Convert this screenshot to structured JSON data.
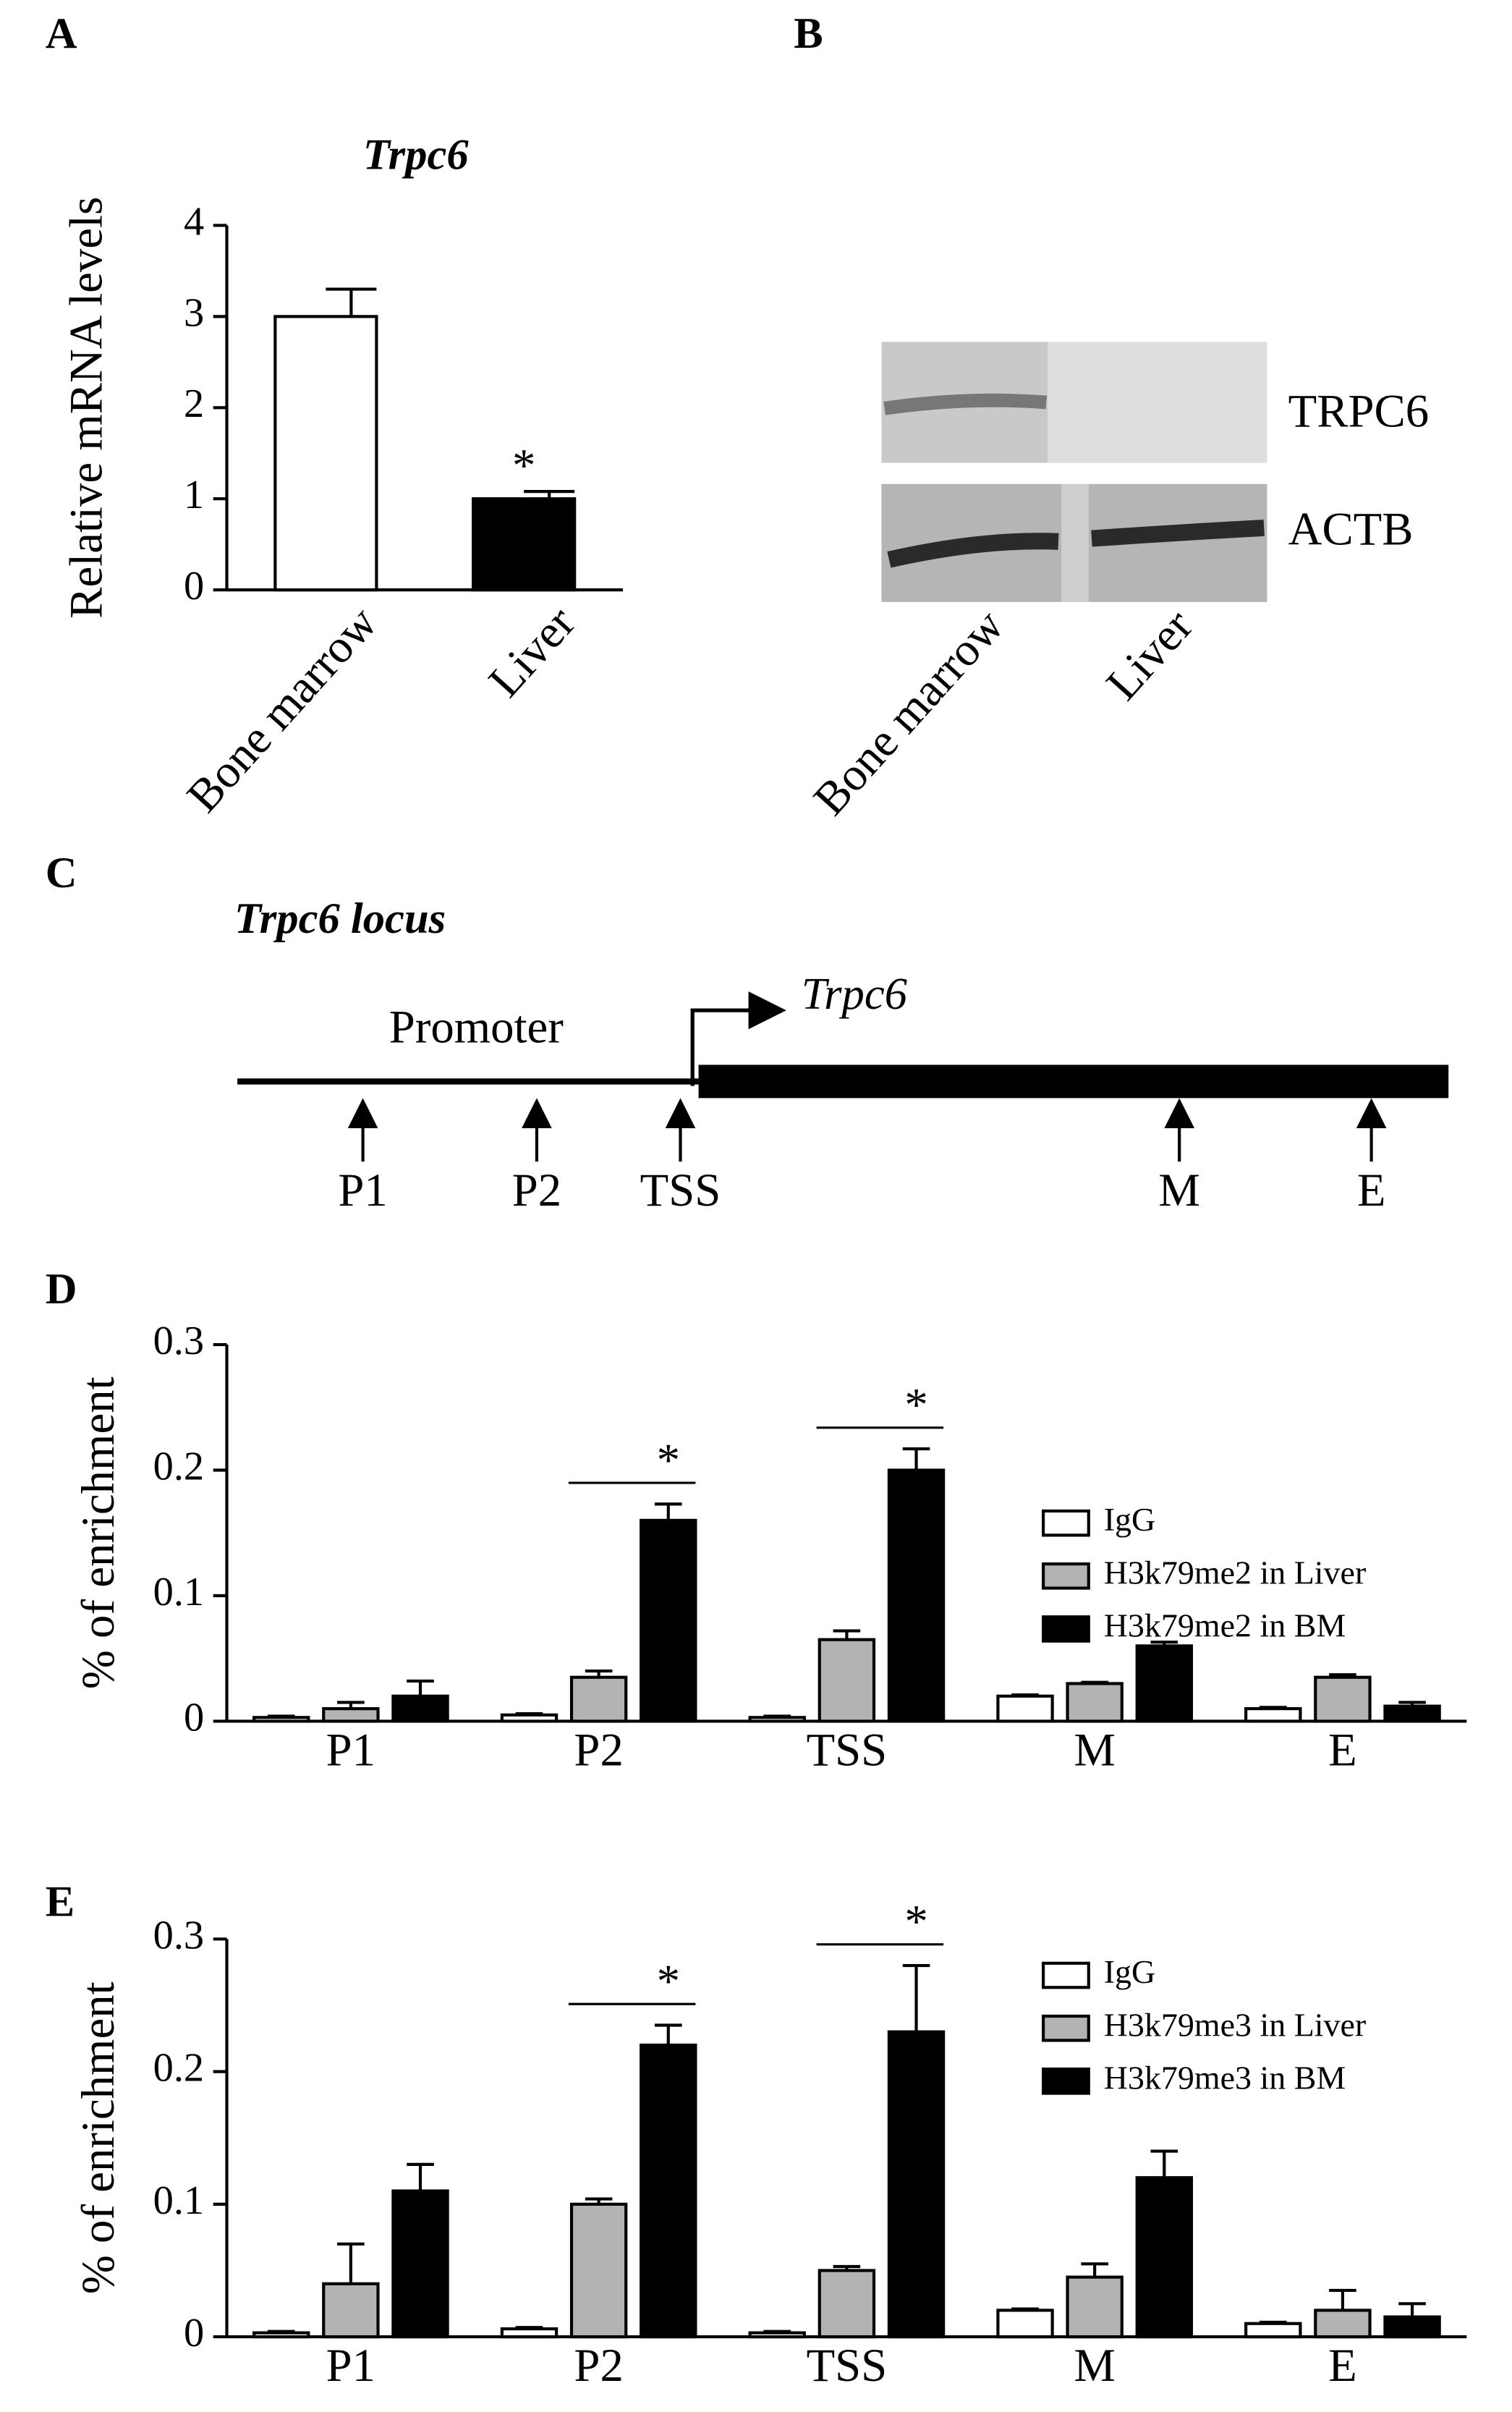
{
  "chart_data": [
    {
      "type": "bar",
      "panel": "A",
      "title": "Trpc6",
      "y_label": "Relative mRNA levels",
      "categories": [
        "Bone marrow",
        "Liver"
      ],
      "values": [
        3.0,
        1.0
      ],
      "errors": [
        0.3,
        0.08
      ],
      "colors": [
        "#ffffff",
        "#000000"
      ],
      "significance": [
        null,
        "*"
      ],
      "ylim": [
        0,
        4
      ],
      "yticks": [
        0,
        1,
        2,
        3,
        4
      ],
      "grid": false
    },
    {
      "type": "bar",
      "panel": "D",
      "y_label": "% of enrichment",
      "categories": [
        "P1",
        "P2",
        "TSS",
        "M",
        "E"
      ],
      "series": [
        {
          "name": "IgG",
          "color": "#ffffff",
          "values": [
            0.003,
            0.005,
            0.003,
            0.02,
            0.01
          ],
          "errors": [
            0.001,
            0.001,
            0.001,
            0.001,
            0.001
          ]
        },
        {
          "name": "H3k79me2 in Liver",
          "color": "#b3b3b3",
          "values": [
            0.01,
            0.035,
            0.065,
            0.03,
            0.035
          ],
          "errors": [
            0.005,
            0.005,
            0.007,
            0.001,
            0.002
          ]
        },
        {
          "name": "H3k79me2 in BM",
          "color": "#000000",
          "values": [
            0.02,
            0.16,
            0.2,
            0.06,
            0.012
          ],
          "errors": [
            0.012,
            0.013,
            0.017,
            0.003,
            0.003
          ]
        }
      ],
      "significance": [
        null,
        "*",
        "*",
        null,
        null
      ],
      "legend": "right",
      "ylim": [
        0,
        0.3
      ],
      "yticks": [
        0,
        0.1,
        0.2,
        0.3
      ],
      "grid": false
    },
    {
      "type": "bar",
      "panel": "E",
      "y_label": "% of enrichment",
      "categories": [
        "P1",
        "P2",
        "TSS",
        "M",
        "E"
      ],
      "series": [
        {
          "name": "IgG",
          "color": "#ffffff",
          "values": [
            0.003,
            0.006,
            0.003,
            0.02,
            0.01
          ],
          "errors": [
            0.001,
            0.001,
            0.001,
            0.001,
            0.001
          ]
        },
        {
          "name": "H3k79me3 in Liver",
          "color": "#b3b3b3",
          "values": [
            0.04,
            0.1,
            0.05,
            0.045,
            0.02
          ],
          "errors": [
            0.03,
            0.004,
            0.003,
            0.01,
            0.015
          ]
        },
        {
          "name": "H3k79me3 in BM",
          "color": "#000000",
          "values": [
            0.11,
            0.22,
            0.23,
            0.12,
            0.015
          ],
          "errors": [
            0.02,
            0.015,
            0.05,
            0.02,
            0.01
          ]
        }
      ],
      "significance": [
        null,
        "*",
        "*",
        null,
        null
      ],
      "legend": "right",
      "ylim": [
        0,
        0.3
      ],
      "yticks": [
        0,
        0.1,
        0.2,
        0.3
      ],
      "grid": false
    }
  ],
  "blot": {
    "panel": "B",
    "bands": [
      "TRPC6",
      "ACTB"
    ],
    "lanes": [
      "Bone marrow",
      "Liver"
    ]
  },
  "locus": {
    "panel": "C",
    "title": "Trpc6 locus",
    "promoter": "Promoter",
    "gene": "Trpc6",
    "sites": [
      "P1",
      "P2",
      "TSS",
      "M",
      "E"
    ]
  }
}
